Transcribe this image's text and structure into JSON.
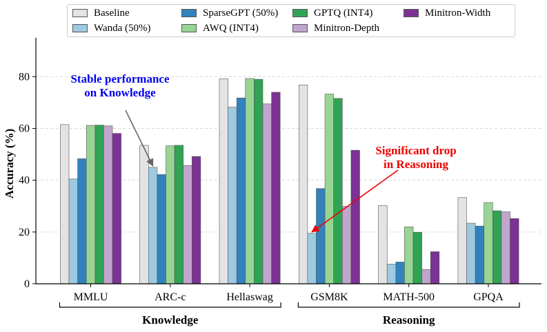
{
  "chart_data": {
    "type": "bar",
    "title": "",
    "xlabel": "",
    "ylabel": "Accuracy (%)",
    "ylim": [
      0,
      95
    ],
    "yticks": [
      0,
      20,
      40,
      60,
      80
    ],
    "grid": "horizontal dashed",
    "legend_position": "top",
    "categories": [
      "MMLU",
      "ARC-c",
      "Hellaswag",
      "GSM8K",
      "MATH-500",
      "GPQA"
    ],
    "groups": [
      {
        "label": "Knowledge",
        "categories": [
          "MMLU",
          "ARC-c",
          "Hellaswag"
        ]
      },
      {
        "label": "Reasoning",
        "categories": [
          "GSM8K",
          "MATH-500",
          "GPQA"
        ]
      }
    ],
    "series": [
      {
        "name": "Baseline",
        "color": "#e3e3e3",
        "values": [
          61.5,
          53.5,
          79.2,
          76.8,
          30.2,
          33.3
        ]
      },
      {
        "name": "Wanda (50%)",
        "color": "#9ecae1",
        "values": [
          40.5,
          45.0,
          68.2,
          19.5,
          7.6,
          23.4
        ]
      },
      {
        "name": "SparseGPT (50%)",
        "color": "#3182bd",
        "values": [
          48.3,
          42.2,
          71.8,
          36.8,
          8.4,
          22.3
        ]
      },
      {
        "name": "AWQ (INT4)",
        "color": "#98d594",
        "values": [
          61.2,
          53.3,
          79.3,
          73.3,
          22.0,
          31.4
        ]
      },
      {
        "name": "GPTQ (INT4)",
        "color": "#31a354",
        "values": [
          61.3,
          53.5,
          79.0,
          71.6,
          19.9,
          28.2
        ]
      },
      {
        "name": "Minitron-Depth",
        "color": "#c2a5cf",
        "values": [
          61.0,
          45.7,
          69.5,
          29.9,
          5.5,
          27.8
        ]
      },
      {
        "name": "Minitron-Width",
        "color": "#7b3294",
        "values": [
          58.1,
          49.2,
          74.0,
          51.6,
          12.4,
          25.2
        ]
      }
    ],
    "annotations": [
      {
        "text_lines": [
          "Stable performance",
          "on Knowledge"
        ],
        "color": "#0000ee",
        "arrow_color": "#666666",
        "points_to": {
          "category": "ARC-c",
          "series": "Wanda (50%)"
        }
      },
      {
        "text_lines": [
          "Significant drop",
          "in Reasoning"
        ],
        "color": "#ee0000",
        "arrow_color": "#ee0000",
        "points_to": {
          "category": "GSM8K",
          "series": "Wanda (50%)"
        }
      }
    ]
  }
}
